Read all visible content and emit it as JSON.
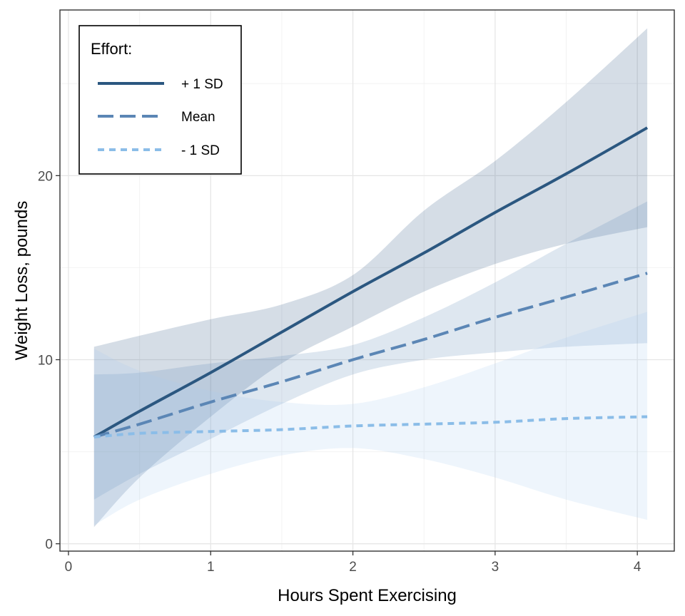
{
  "chart_data": {
    "type": "line",
    "xlabel": "Hours Spent Exercising",
    "ylabel": "Weight Loss, pounds",
    "xlim": [
      -0.06,
      4.26
    ],
    "ylim": [
      -0.4,
      29.0
    ],
    "x_ticks": [
      0,
      1,
      2,
      3,
      4
    ],
    "x_tick_labels": [
      "0",
      "1",
      "2",
      "3",
      "4"
    ],
    "y_ticks": [
      0,
      10,
      20
    ],
    "y_tick_labels": [
      "0",
      "10",
      "20"
    ],
    "x_minor_ticks": [
      0.5,
      1.5,
      2.5,
      3.5
    ],
    "y_minor_ticks": [
      5,
      15,
      25
    ],
    "grid": true,
    "legend": {
      "title": "Effort:",
      "position": "top-left",
      "entries": [
        "+ 1 SD",
        "Mean",
        "- 1 SD"
      ]
    },
    "series": [
      {
        "name": "+ 1 SD",
        "color": "#2b5780",
        "dash": "solid",
        "band_color": "#2b5780",
        "x": [
          0.18,
          0.5,
          1.0,
          1.5,
          2.0,
          2.5,
          3.0,
          3.5,
          4.07
        ],
        "y": [
          5.8,
          7.2,
          9.3,
          11.5,
          13.7,
          15.8,
          18.0,
          20.1,
          22.6
        ],
        "lower": [
          0.9,
          3.6,
          6.9,
          9.8,
          11.8,
          13.7,
          15.2,
          16.3,
          17.2
        ],
        "upper": [
          10.7,
          11.3,
          12.2,
          13.0,
          14.6,
          18.1,
          20.8,
          24.0,
          28.0
        ]
      },
      {
        "name": "Mean",
        "color": "#5b86b5",
        "dash": "dashed",
        "band_color": "#5b86b5",
        "x": [
          0.18,
          0.5,
          1.0,
          1.5,
          2.0,
          2.5,
          3.0,
          3.5,
          4.07
        ],
        "y": [
          5.8,
          6.5,
          7.7,
          8.8,
          10.0,
          11.1,
          12.3,
          13.4,
          14.7
        ],
        "lower": [
          2.4,
          3.8,
          5.7,
          7.6,
          9.2,
          10.0,
          10.4,
          10.7,
          10.9
        ],
        "upper": [
          9.2,
          9.3,
          9.8,
          10.2,
          10.8,
          12.3,
          14.2,
          16.3,
          18.6
        ]
      },
      {
        "name": "- 1 SD",
        "color": "#8bbde8",
        "dash": "dotted",
        "band_color": "#a9cdf0",
        "x": [
          0.18,
          0.5,
          1.0,
          1.5,
          2.0,
          2.5,
          3.0,
          3.5,
          4.07
        ],
        "y": [
          5.8,
          6.0,
          6.1,
          6.2,
          6.4,
          6.5,
          6.6,
          6.8,
          6.9
        ],
        "lower": [
          1.0,
          2.4,
          3.8,
          4.8,
          5.2,
          4.6,
          3.6,
          2.4,
          1.3
        ],
        "upper": [
          10.6,
          9.4,
          8.3,
          7.7,
          7.6,
          8.5,
          9.8,
          11.2,
          12.6
        ]
      }
    ]
  }
}
